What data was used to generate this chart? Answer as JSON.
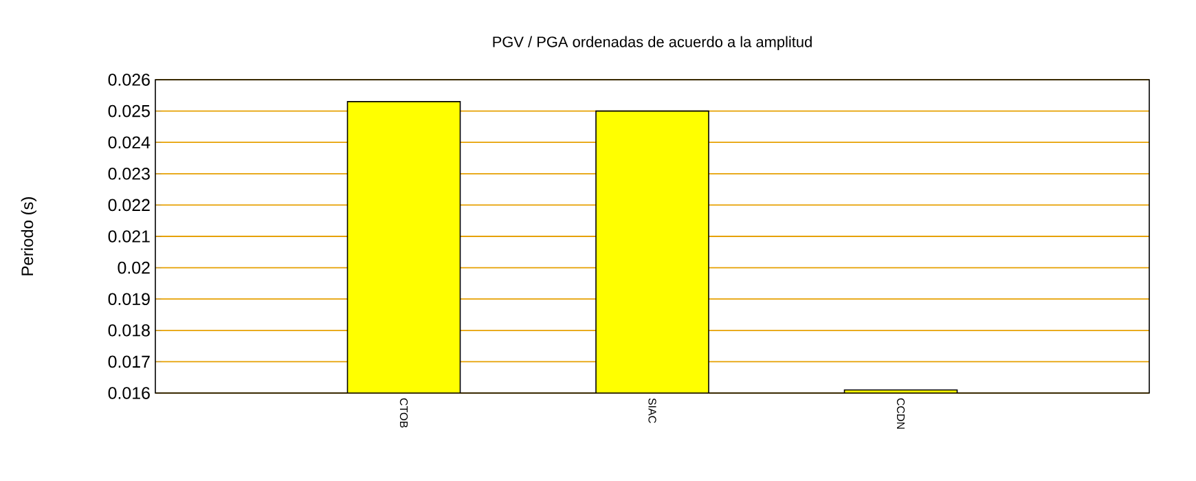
{
  "chart_data": {
    "type": "bar",
    "title": "PGV / PGA ordenadas de acuerdo a la amplitud",
    "ylabel": "Periodo (s)",
    "categories": [
      "CTOB",
      "SIAC",
      "CCDN"
    ],
    "values": [
      0.0253,
      0.025,
      0.0161
    ],
    "color": "#ffff00",
    "ylim": [
      0.016,
      0.026
    ],
    "yticks": [
      0.016,
      0.017,
      0.018,
      0.019,
      0.02,
      0.021,
      0.022,
      0.023,
      0.024,
      0.025,
      0.026
    ],
    "grid": "y"
  }
}
